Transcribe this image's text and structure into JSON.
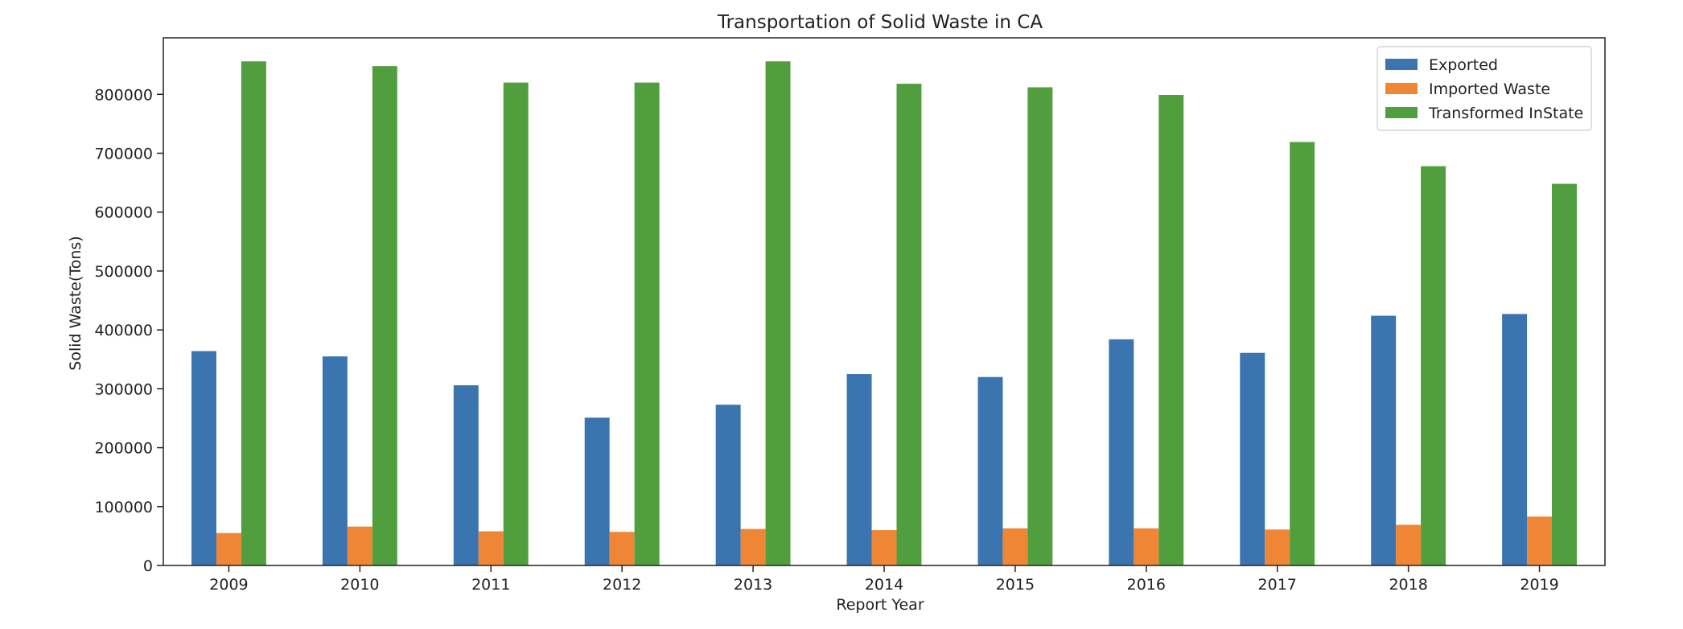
{
  "chart_data": {
    "type": "bar",
    "title": "Transportation of Solid Waste in CA",
    "xlabel": "Report Year",
    "ylabel": "Solid Waste(Tons)",
    "categories": [
      "2009",
      "2010",
      "2011",
      "2012",
      "2013",
      "2014",
      "2015",
      "2016",
      "2017",
      "2018",
      "2019"
    ],
    "series": [
      {
        "name": "Exported",
        "color": "#3a75b0",
        "values": [
          364000,
          355000,
          306000,
          251000,
          273000,
          325000,
          320000,
          384000,
          361000,
          424000,
          427000
        ]
      },
      {
        "name": "Imported Waste",
        "color": "#ef8636",
        "values": [
          55000,
          66000,
          58000,
          57000,
          62000,
          60000,
          63000,
          63000,
          61000,
          69000,
          83000
        ]
      },
      {
        "name": "Transformed InState",
        "color": "#519e3e",
        "values": [
          856000,
          848000,
          820000,
          820000,
          856000,
          818000,
          812000,
          799000,
          719000,
          678000,
          648000
        ]
      }
    ],
    "ylim": [
      0,
      896000
    ],
    "yticks": [
      0,
      100000,
      200000,
      300000,
      400000,
      500000,
      600000,
      700000,
      800000
    ],
    "grid": false,
    "legend_position": "top-right"
  }
}
